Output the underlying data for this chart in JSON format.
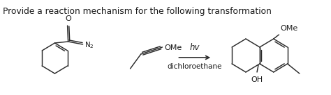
{
  "title": "Provide a reaction mechanism for the following transformation",
  "bg_color": "#ffffff",
  "line_color": "#2a2a2a",
  "text_color": "#1a1a1a",
  "arrow_label_top": "hv",
  "arrow_label_bottom": "dichloroethane",
  "figsize": [
    4.74,
    1.37
  ],
  "dpi": 100,
  "lw": 1.05
}
